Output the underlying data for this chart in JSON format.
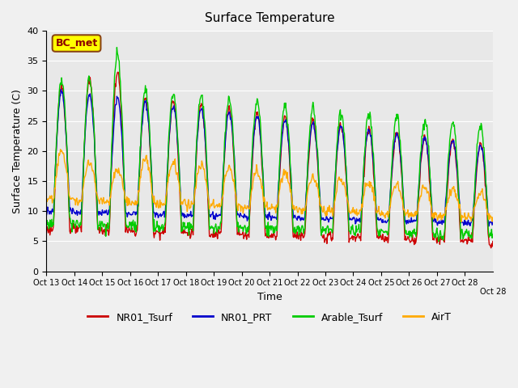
{
  "title": "Surface Temperature",
  "ylabel": "Surface Temperature (C)",
  "xlabel": "Time",
  "xlim_label": "BC_met",
  "ylim": [
    0,
    40
  ],
  "yticks": [
    0,
    5,
    10,
    15,
    20,
    25,
    30,
    35,
    40
  ],
  "xtick_labels": [
    "Oct 13",
    "Oct 14",
    "Oct 15",
    "Oct 16",
    "Oct 17",
    "Oct 18",
    "Oct 19",
    "Oct 20",
    "Oct 21",
    "Oct 22",
    "Oct 23",
    "Oct 24",
    "Oct 25",
    "Oct 26",
    "Oct 27",
    "Oct 28"
  ],
  "bg_color": "#e8e8e8",
  "fig_color": "#f0f0f0",
  "line_colors": {
    "NR01_Tsurf": "#cc0000",
    "NR01_PRT": "#0000cc",
    "Arable_Tsurf": "#00cc00",
    "AirT": "#ffaa00"
  },
  "linewidth": 1.0,
  "n_days": 16,
  "pts_per_day": 48
}
